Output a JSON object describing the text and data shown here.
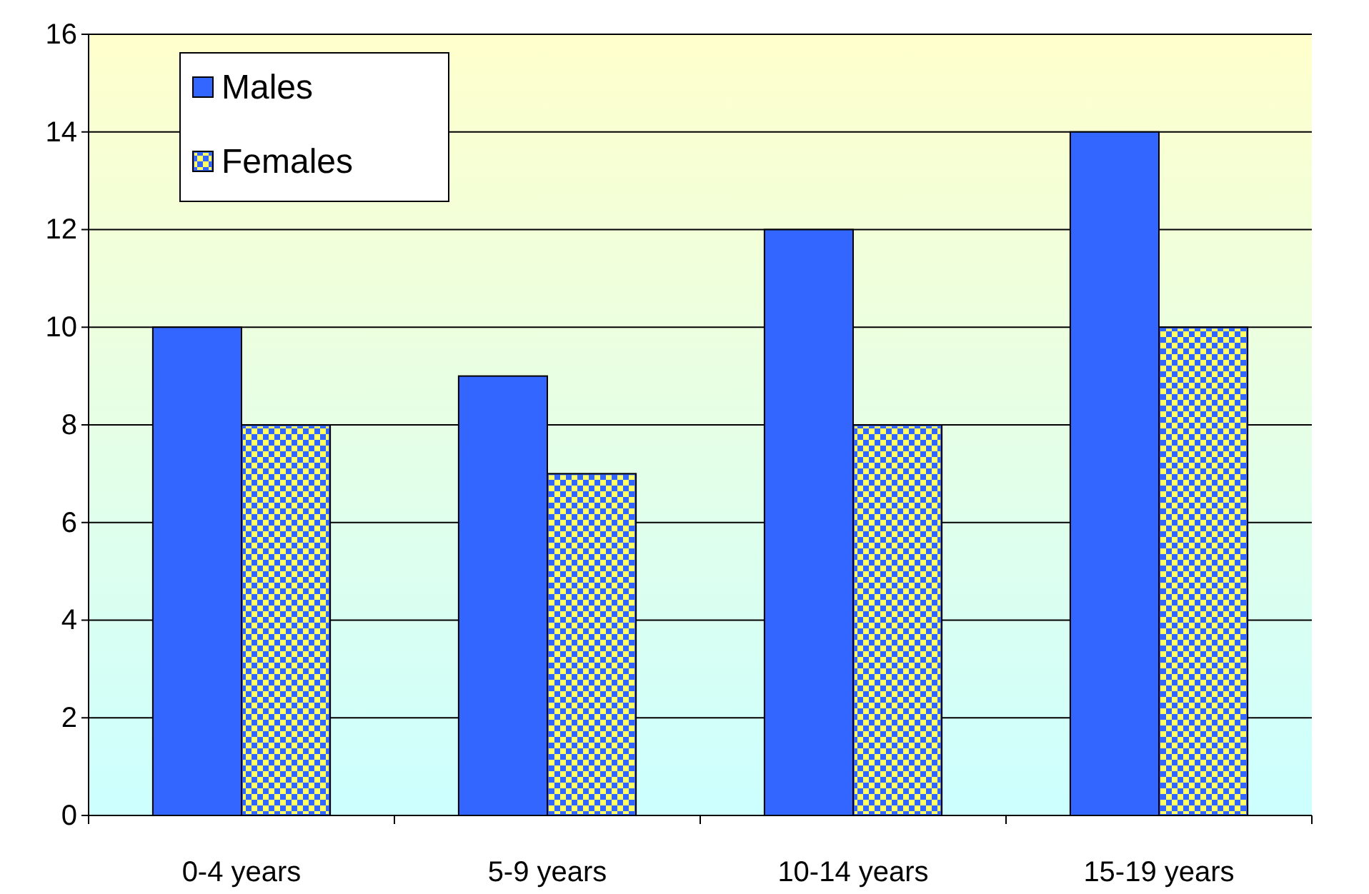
{
  "chart_data": {
    "type": "bar",
    "categories": [
      "0-4 years",
      "5-9 years",
      "10-14 years",
      "15-19 years"
    ],
    "series": [
      {
        "name": "Males",
        "color": "#3366ff",
        "values": [
          10,
          9,
          12,
          14
        ]
      },
      {
        "name": "Females",
        "color": "#3366ff",
        "values": [
          8,
          7,
          8,
          10
        ]
      }
    ],
    "ylim": [
      0,
      16
    ],
    "yticks": [
      0,
      2,
      4,
      6,
      8,
      10,
      12,
      14,
      16
    ],
    "grid": "y",
    "legend": "top left"
  }
}
